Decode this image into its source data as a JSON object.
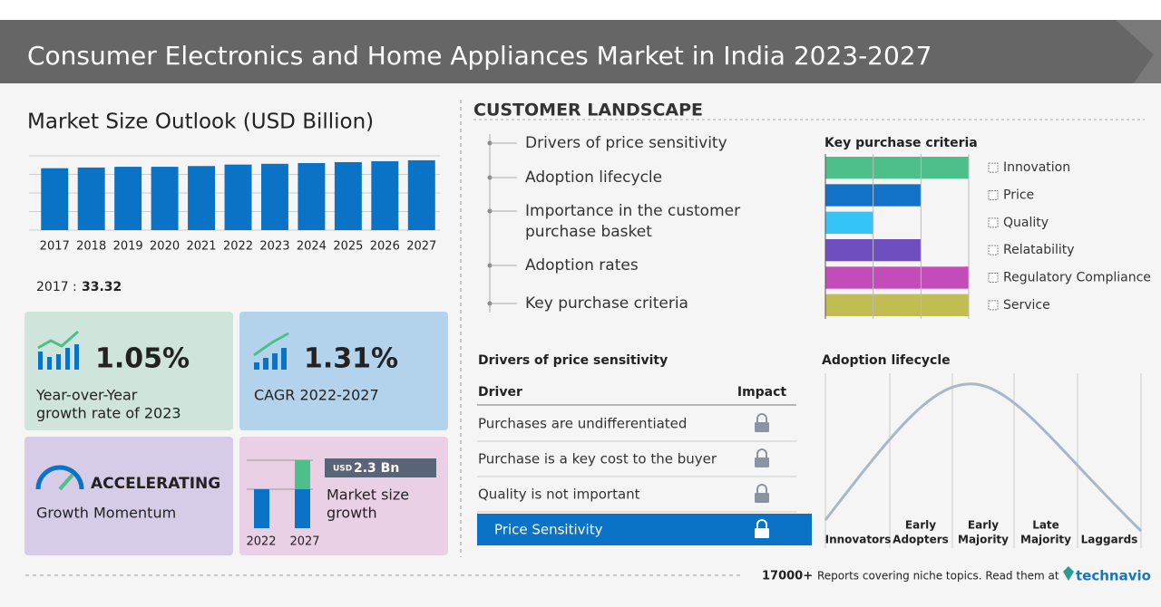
{
  "header": {
    "title": "Consumer Electronics and Home Appliances Market in India 2023-2027"
  },
  "market_size": {
    "title": "Market Size Outlook (USD Billion)",
    "chart": {
      "type": "bar",
      "categories": [
        "2017",
        "2018",
        "2019",
        "2020",
        "2021",
        "2022",
        "2023",
        "2024",
        "2025",
        "2026",
        "2027"
      ],
      "values": [
        33.32,
        33.7,
        34.1,
        34.1,
        34.5,
        35.3,
        35.7,
        36.1,
        36.6,
        37.1,
        37.6
      ],
      "color": "#0a73c6",
      "ylim": [
        0,
        40
      ],
      "yticks": [
        0,
        10,
        20,
        30,
        40
      ],
      "grid": true
    },
    "base_year": "2017",
    "separator": ":",
    "base_value": 33.32
  },
  "cards": {
    "yoy": {
      "value": "1.05%",
      "label": [
        "Year-over-Year",
        "growth rate of 2023"
      ]
    },
    "cagr": {
      "value": "1.31%",
      "label": [
        "CAGR 2022-2027"
      ]
    },
    "momentum": {
      "value": "ACCELERATING",
      "label": [
        "Growth Momentum"
      ]
    },
    "growth": {
      "unit": "USD",
      "value": "2.3 Bn",
      "label": [
        "Market size",
        "growth"
      ],
      "years": [
        "2022",
        "2027"
      ]
    }
  },
  "customer_landscape": {
    "title": "CUSTOMER LANDSCAPE",
    "items": [
      [
        "Drivers of price sensitivity"
      ],
      [
        "Adoption lifecycle"
      ],
      [
        "Importance in the customer",
        "purchase basket"
      ],
      [
        "Adoption rates"
      ],
      [
        "Key purchase criteria"
      ]
    ],
    "kpc": {
      "title": "Key purchase criteria",
      "chart": {
        "type": "bar",
        "orientation": "horizontal",
        "categories": [
          "Innovation",
          "Price",
          "Quality",
          "Relatability",
          "Regulatory Compliance",
          "Service"
        ],
        "values": [
          3,
          2,
          1,
          2,
          3,
          3
        ],
        "colors": [
          "#4dbf8a",
          "#1272c7",
          "#36c3f5",
          "#6f4fc0",
          "#c24cb8",
          "#c0bd53"
        ],
        "xlim": [
          0,
          3
        ],
        "xticks": [
          0,
          1,
          2,
          3
        ],
        "grid": true
      }
    }
  },
  "drivers": {
    "title": "Drivers of price sensitivity",
    "columns": [
      "Driver",
      "Impact"
    ],
    "rows": [
      "Purchases are undifferentiated",
      "Purchase is a key cost to the buyer",
      "Quality is not important",
      "Price Sensitivity"
    ],
    "highlighted_row": 3
  },
  "adoption": {
    "title": "Adoption lifecycle",
    "stages": [
      [
        "Innovators"
      ],
      [
        "Early",
        "Adopters"
      ],
      [
        "Early",
        "Majority"
      ],
      [
        "Late",
        "Majority"
      ],
      [
        "Laggards"
      ]
    ]
  },
  "footer": {
    "count": "17000+",
    "text": "Reports covering niche topics. Read them at",
    "brand": "technavio"
  }
}
